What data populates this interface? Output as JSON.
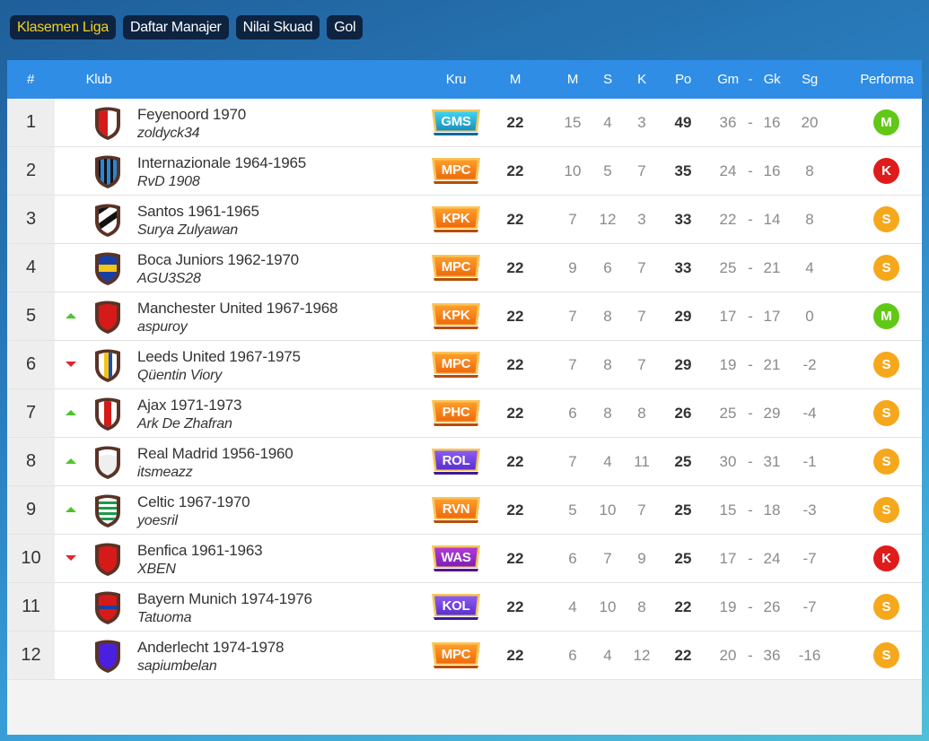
{
  "tabs": [
    {
      "label": "Klasemen Liga",
      "active": true
    },
    {
      "label": "Daftar Manajer",
      "active": false
    },
    {
      "label": "Nilai Skuad",
      "active": false
    },
    {
      "label": "Gol",
      "active": false
    }
  ],
  "header": {
    "rank": "#",
    "club": "Klub",
    "crew": "Kru",
    "played": "M",
    "won": "M",
    "drawn": "S",
    "lost": "K",
    "points": "Po",
    "goals_for": "Gm",
    "dash": "-",
    "goals_against": "Gk",
    "goal_diff": "Sg",
    "form": "Performa"
  },
  "colors": {
    "header_bg": "#2f8de6",
    "active_tab": "#f4d21e",
    "perf_M": "#62c816",
    "perf_K": "#e01b1b",
    "perf_S": "#f6a81c",
    "trend_up": "#4cc52b",
    "trend_down": "#e3242b"
  },
  "rows": [
    {
      "rank": "1",
      "trend": "",
      "club": "Feyenoord 1970",
      "manager": "zoldyck34",
      "crest": "red-white-stripe-shield-icon",
      "crew": "GMS",
      "crew_color": "cyan",
      "played": "22",
      "won": "15",
      "drawn": "4",
      "lost": "3",
      "points": "49",
      "gf": "36",
      "ga": "16",
      "gd": "20",
      "form": "M"
    },
    {
      "rank": "2",
      "trend": "",
      "club": "Internazionale 1964-1965",
      "manager": "RvD 1908",
      "crest": "blue-black-stripes-shield-icon",
      "crew": "MPC",
      "crew_color": "orange",
      "played": "22",
      "won": "10",
      "drawn": "5",
      "lost": "7",
      "points": "35",
      "gf": "24",
      "ga": "16",
      "gd": "8",
      "form": "K"
    },
    {
      "rank": "3",
      "trend": "",
      "club": "Santos 1961-1965",
      "manager": "Surya Zulyawan",
      "crest": "black-white-diagonal-shield-icon",
      "crew": "KPK",
      "crew_color": "orange",
      "played": "22",
      "won": "7",
      "drawn": "12",
      "lost": "3",
      "points": "33",
      "gf": "22",
      "ga": "14",
      "gd": "8",
      "form": "S"
    },
    {
      "rank": "4",
      "trend": "",
      "club": "Boca Juniors 1962-1970",
      "manager": "AGU3S28",
      "crest": "blue-yellow-band-shield-icon",
      "crew": "MPC",
      "crew_color": "orange",
      "played": "22",
      "won": "9",
      "drawn": "6",
      "lost": "7",
      "points": "33",
      "gf": "25",
      "ga": "21",
      "gd": "4",
      "form": "S"
    },
    {
      "rank": "5",
      "trend": "up",
      "club": "Manchester United 1967-1968",
      "manager": "aspuroy",
      "crest": "red-shield-icon",
      "crew": "KPK",
      "crew_color": "orange",
      "played": "22",
      "won": "7",
      "drawn": "8",
      "lost": "7",
      "points": "29",
      "gf": "17",
      "ga": "17",
      "gd": "0",
      "form": "M"
    },
    {
      "rank": "6",
      "trend": "down",
      "club": "Leeds United 1967-1975",
      "manager": "Qüentin Viory",
      "crest": "white-blue-yellow-shield-icon",
      "crew": "MPC",
      "crew_color": "orange",
      "played": "22",
      "won": "7",
      "drawn": "8",
      "lost": "7",
      "points": "29",
      "gf": "19",
      "ga": "21",
      "gd": "-2",
      "form": "S"
    },
    {
      "rank": "7",
      "trend": "up",
      "club": "Ajax 1971-1973",
      "manager": "Ark De Zhafran",
      "crest": "white-red-stripe-shield-icon",
      "crew": "PHC",
      "crew_color": "orange",
      "played": "22",
      "won": "6",
      "drawn": "8",
      "lost": "8",
      "points": "26",
      "gf": "25",
      "ga": "29",
      "gd": "-4",
      "form": "S"
    },
    {
      "rank": "8",
      "trend": "up",
      "club": "Real Madrid 1956-1960",
      "manager": "itsmeazz",
      "crest": "white-shield-icon",
      "crew": "ROL",
      "crew_color": "purple",
      "played": "22",
      "won": "7",
      "drawn": "4",
      "lost": "11",
      "points": "25",
      "gf": "30",
      "ga": "31",
      "gd": "-1",
      "form": "S"
    },
    {
      "rank": "9",
      "trend": "up",
      "club": "Celtic 1967-1970",
      "manager": "yoesril",
      "crest": "green-white-hoops-shield-icon",
      "crew": "RVN",
      "crew_color": "orange",
      "played": "22",
      "won": "5",
      "drawn": "10",
      "lost": "7",
      "points": "25",
      "gf": "15",
      "ga": "18",
      "gd": "-3",
      "form": "S"
    },
    {
      "rank": "10",
      "trend": "down",
      "club": "Benfica 1961-1963",
      "manager": "XBEN",
      "crest": "red-shield-icon",
      "crew": "WAS",
      "crew_color": "magenta",
      "played": "22",
      "won": "6",
      "drawn": "7",
      "lost": "9",
      "points": "25",
      "gf": "17",
      "ga": "24",
      "gd": "-7",
      "form": "K"
    },
    {
      "rank": "11",
      "trend": "",
      "club": "Bayern Munich 1974-1976",
      "manager": "Tatuoma",
      "crest": "red-blue-band-shield-icon",
      "crew": "KOL",
      "crew_color": "purple",
      "played": "22",
      "won": "4",
      "drawn": "10",
      "lost": "8",
      "points": "22",
      "gf": "19",
      "ga": "26",
      "gd": "-7",
      "form": "S"
    },
    {
      "rank": "12",
      "trend": "",
      "club": "Anderlecht 1974-1978",
      "manager": "sapiumbelan",
      "crest": "purple-shield-icon",
      "crew": "MPC",
      "crew_color": "orange",
      "played": "22",
      "won": "6",
      "drawn": "4",
      "lost": "12",
      "points": "22",
      "gf": "20",
      "ga": "36",
      "gd": "-16",
      "form": "S"
    }
  ]
}
